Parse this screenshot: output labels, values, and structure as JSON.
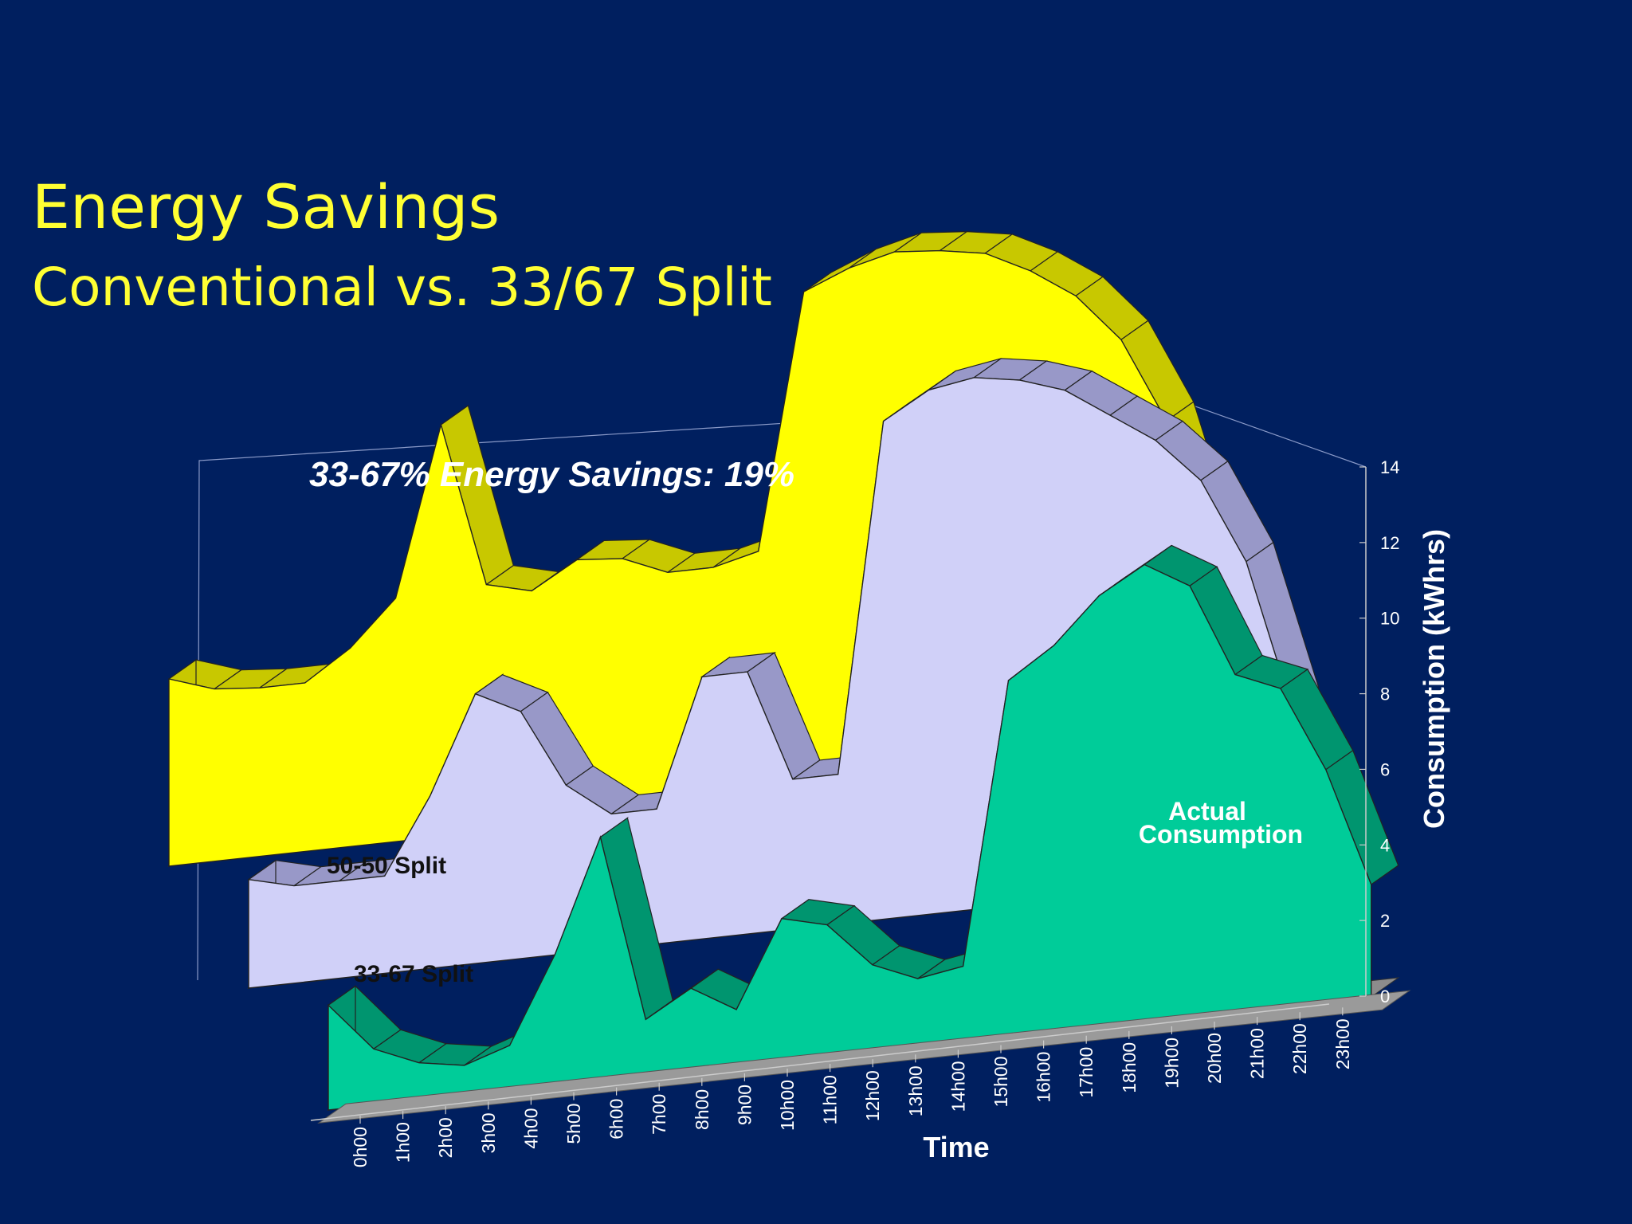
{
  "slide": {
    "title": "Energy Savings",
    "subtitle": "Conventional vs. 33/67 Split"
  },
  "colors": {
    "background": "#001F5F",
    "title": "#FFFF33",
    "split_50_50_front": "#FFFF00",
    "split_50_50_side": "#C8C800",
    "split_33_67_front": "#D0D0F8",
    "split_33_67_side": "#9898C8",
    "actual_front": "#00CC99",
    "actual_side": "#00956F",
    "floor": "#8C8C8C",
    "gridline": "#8A9AC8"
  },
  "chart_data": {
    "type": "area",
    "chart_3d": true,
    "annotation": "33-67% Energy Savings: 19%",
    "xlabel": "Time",
    "ylabel": "Consumption (kWhrs)",
    "ylim": [
      0,
      14
    ],
    "yticks": [
      0,
      2,
      4,
      6,
      8,
      10,
      12,
      14
    ],
    "categories": [
      "0h00",
      "1h00",
      "2h00",
      "3h00",
      "4h00",
      "5h00",
      "6h00",
      "7h00",
      "8h00",
      "9h00",
      "10h00",
      "11h00",
      "12h00",
      "13h00",
      "14h00",
      "15h00",
      "16h00",
      "17h00",
      "18h00",
      "19h00",
      "20h00",
      "21h00",
      "22h00",
      "23h00"
    ],
    "series": [
      {
        "name": "50-50 Split",
        "values": [
          5.0,
          4.6,
          4.5,
          4.5,
          5.3,
          6.5,
          11.0,
          6.6,
          6.3,
          7.0,
          6.9,
          6.4,
          6.4,
          6.7,
          13.5,
          14.0,
          14.3,
          14.2,
          14.0,
          13.4,
          12.6,
          11.3,
          9.0,
          5.0
        ]
      },
      {
        "name": "33-67 Split",
        "values": [
          2.9,
          2.6,
          2.6,
          2.6,
          4.6,
          7.2,
          6.6,
          4.5,
          3.6,
          3.6,
          7.0,
          7.0,
          4.0,
          4.0,
          13.3,
          14.0,
          14.2,
          14.0,
          13.6,
          12.8,
          12.0,
          10.8,
          8.5,
          4.5
        ]
      },
      {
        "name": "Actual Consumption",
        "values": [
          2.8,
          1.5,
          1.0,
          0.8,
          1.2,
          3.5,
          6.5,
          1.5,
          2.2,
          1.5,
          3.8,
          3.5,
          2.3,
          1.8,
          2.0,
          9.5,
          10.3,
          11.5,
          12.2,
          11.5,
          9.0,
          8.5,
          6.2,
          3.0
        ]
      }
    ],
    "labels": {
      "split_50_50": "50-50 Split",
      "split_33_67": "33-67 Split",
      "actual_line1": "Actual",
      "actual_line2": "Consumption"
    }
  }
}
